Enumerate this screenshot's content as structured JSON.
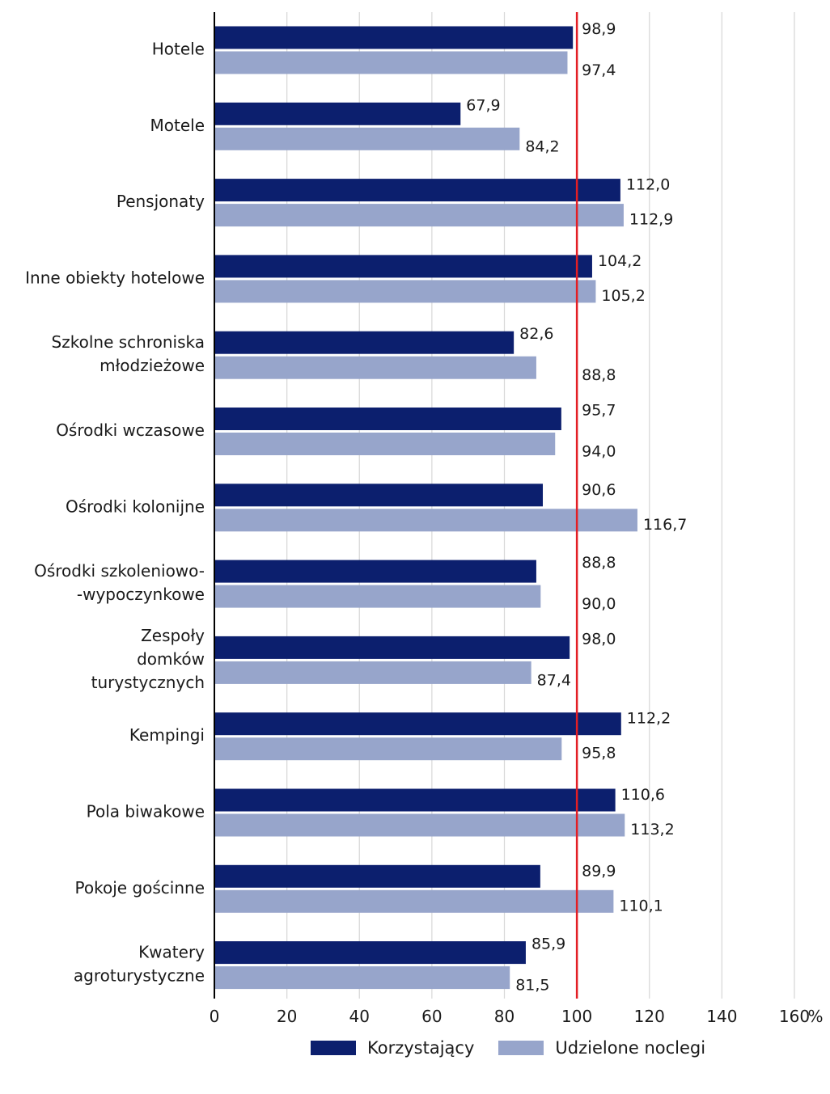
{
  "chart_data": {
    "type": "bar",
    "orientation": "horizontal",
    "categories": [
      [
        "Hotele"
      ],
      [
        "Motele"
      ],
      [
        "Pensjonaty"
      ],
      [
        "Inne obiekty hotelowe"
      ],
      [
        "Szkolne schroniska",
        "młodzieżowe"
      ],
      [
        "Ośrodki wczasowe"
      ],
      [
        "Ośrodki kolonijne"
      ],
      [
        "Ośrodki szkoleniowo-",
        "-wypoczynkowe"
      ],
      [
        "Zespoły",
        "domków",
        "turystycznych"
      ],
      [
        "Kempingi"
      ],
      [
        "Pola biwakowe"
      ],
      [
        "Pokoje gościnne"
      ],
      [
        "Kwatery",
        "agroturystyczne"
      ]
    ],
    "series": [
      {
        "name": "Korzystający",
        "color": "#0c1f6e",
        "values": [
          98.9,
          67.9,
          112.0,
          104.2,
          82.6,
          95.7,
          90.6,
          88.8,
          98.0,
          112.2,
          110.6,
          89.9,
          85.9
        ],
        "labels": [
          "98,9",
          "67,9",
          "112,0",
          "104,2",
          "82,6",
          "95,7",
          "90,6",
          "88,8",
          "98,0",
          "112,2",
          "110,6",
          "89,9",
          "85,9"
        ]
      },
      {
        "name": "Udzielone noclegi",
        "color": "#97a5cb",
        "values": [
          97.4,
          84.2,
          112.9,
          105.2,
          88.8,
          94.0,
          116.7,
          90.0,
          87.4,
          95.8,
          113.2,
          110.1,
          81.5
        ],
        "labels": [
          "97,4",
          "84,2",
          "112,9",
          "105,2",
          "88,8",
          "94,0",
          "116,7",
          "90,0",
          "87,4",
          "95,8",
          "113,2",
          "110,1",
          "81,5"
        ]
      }
    ],
    "xlim": [
      0,
      160
    ],
    "xticks": [
      0,
      20,
      40,
      60,
      80,
      100,
      120,
      140,
      160
    ],
    "tick_labels": [
      "0",
      "20",
      "40",
      "60",
      "80",
      "100",
      "120",
      "140",
      "160"
    ],
    "x_unit": "%",
    "reference_line": {
      "value": 100,
      "color": "#e31e24"
    },
    "grid": "vertical",
    "legend_position": "bottom"
  }
}
